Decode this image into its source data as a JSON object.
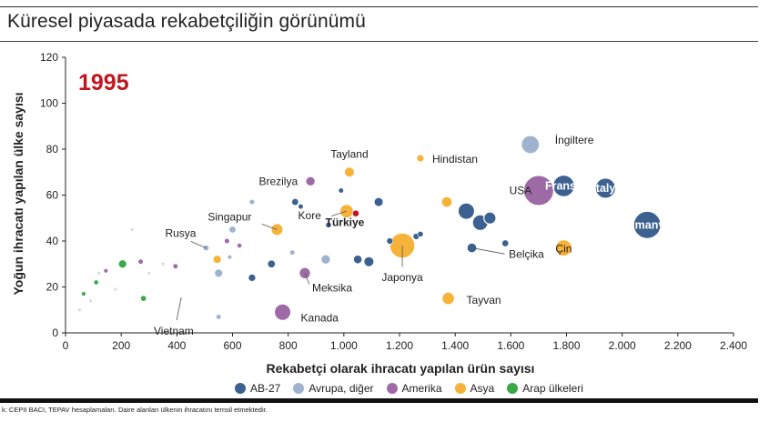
{
  "title": "Küresel piyasada rekabetçiliğin görünümü",
  "source": "k: CEPII BACI, TEPAV hesaplamaları. Daire alanları ülkenin ihracatını temsil etmektedir.",
  "colors": {
    "AB-27": "#3c6190",
    "Avrupa, diğer": "#9fb3cf",
    "Amerika": "#9e6aa6",
    "Asya": "#f7b339",
    "Arap ülkeleri": "#3aa845",
    "highlight": "#c0161f",
    "small": "#cfcfd6"
  },
  "chart_data": {
    "type": "scatter",
    "year_label": "1995",
    "xlabel": "Rekabetçi olarak ihracatı yapılan ürün sayısı",
    "ylabel": "Yoğun ihracatı yapılan ülke sayısı",
    "xlim": [
      0,
      2400
    ],
    "ylim": [
      0,
      120
    ],
    "xticks": [
      0,
      200,
      400,
      600,
      800,
      1000,
      1200,
      1400,
      1600,
      1800,
      2000,
      2200,
      2400
    ],
    "xtick_labels": [
      "0",
      "200",
      "400",
      "600",
      "800",
      "1.000",
      "1.200",
      "1.400",
      "1.600",
      "1.800",
      "2.000",
      "2.200",
      "2.400"
    ],
    "yticks": [
      0,
      20,
      40,
      60,
      80,
      100,
      120
    ],
    "grid": false,
    "legend_position": "bottom",
    "legend": [
      "AB-27",
      "Avrupa, diğer",
      "Amerika",
      "Asya",
      "Arap ülkeleri"
    ],
    "points": [
      {
        "x": 2090,
        "y": 47,
        "size": 13,
        "group": "AB-27",
        "label": "Almanya"
      },
      {
        "x": 1790,
        "y": 64,
        "size": 8,
        "group": "AB-27",
        "label": "Fransa"
      },
      {
        "x": 1940,
        "y": 63,
        "size": 7,
        "group": "AB-27",
        "label": "İtalya"
      },
      {
        "x": 1700,
        "y": 62,
        "size": 16,
        "group": "Amerika",
        "label": "USA"
      },
      {
        "x": 1670,
        "y": 82,
        "size": 5.5,
        "group": "Avrupa, diğer",
        "label": "İngiltere"
      },
      {
        "x": 1790,
        "y": 37,
        "size": 4.5,
        "group": "Asya",
        "label": "Çin"
      },
      {
        "x": 1440,
        "y": 53,
        "size": 4.5,
        "group": "AB-27",
        "label": ""
      },
      {
        "x": 1490,
        "y": 48,
        "size": 4,
        "group": "AB-27",
        "label": ""
      },
      {
        "x": 1525,
        "y": 50,
        "size": 2.3,
        "group": "AB-27",
        "label": ""
      },
      {
        "x": 1460,
        "y": 37,
        "size": 1.3,
        "group": "AB-27",
        "label": "Belçika"
      },
      {
        "x": 1210,
        "y": 38,
        "size": 11,
        "group": "Asya",
        "label": "Japonya"
      },
      {
        "x": 1375,
        "y": 15,
        "size": 2.5,
        "group": "Asya",
        "label": "Tayvan"
      },
      {
        "x": 1370,
        "y": 57,
        "size": 1.6,
        "group": "Asya",
        "label": ""
      },
      {
        "x": 1275,
        "y": 76,
        "size": 0.7,
        "group": "Asya",
        "label": "Hindistan"
      },
      {
        "x": 1020,
        "y": 70,
        "size": 1.4,
        "group": "Asya",
        "label": "Tayland"
      },
      {
        "x": 1010,
        "y": 53,
        "size": 3,
        "group": "Asya",
        "label": "Kore"
      },
      {
        "x": 1043,
        "y": 52,
        "size": 0.55,
        "group": "Türkiye",
        "label": "Türkiye"
      },
      {
        "x": 760,
        "y": 45,
        "size": 2.3,
        "group": "Asya",
        "label": "Singapur"
      },
      {
        "x": 545,
        "y": 32,
        "size": 0.9,
        "group": "Asya",
        "label": ""
      },
      {
        "x": 880,
        "y": 66,
        "size": 1.2,
        "group": "Amerika",
        "label": "Brezilya"
      },
      {
        "x": 780,
        "y": 9,
        "size": 4.5,
        "group": "Amerika",
        "label": "Kanada"
      },
      {
        "x": 860,
        "y": 26,
        "size": 1.8,
        "group": "Amerika",
        "label": "Meksika"
      },
      {
        "x": 935,
        "y": 32,
        "size": 1.2,
        "group": "Avrupa, diğer",
        "label": ""
      },
      {
        "x": 1125,
        "y": 57,
        "size": 1.1,
        "group": "AB-27",
        "label": ""
      },
      {
        "x": 1090,
        "y": 31,
        "size": 1.4,
        "group": "AB-27",
        "label": ""
      },
      {
        "x": 1050,
        "y": 32,
        "size": 1,
        "group": "AB-27",
        "label": ""
      },
      {
        "x": 1165,
        "y": 40,
        "size": 0.5,
        "group": "AB-27",
        "label": ""
      },
      {
        "x": 1260,
        "y": 42,
        "size": 0.5,
        "group": "AB-27",
        "label": ""
      },
      {
        "x": 1275,
        "y": 43,
        "size": 0.4,
        "group": "AB-27",
        "label": ""
      },
      {
        "x": 1580,
        "y": 39,
        "size": 0.6,
        "group": "AB-27",
        "label": ""
      },
      {
        "x": 825,
        "y": 57,
        "size": 0.6,
        "group": "AB-27",
        "label": ""
      },
      {
        "x": 845,
        "y": 55,
        "size": 0.3,
        "group": "AB-27",
        "label": ""
      },
      {
        "x": 990,
        "y": 62,
        "size": 0.3,
        "group": "AB-27",
        "label": ""
      },
      {
        "x": 740,
        "y": 30,
        "size": 0.8,
        "group": "AB-27",
        "label": ""
      },
      {
        "x": 670,
        "y": 24,
        "size": 0.7,
        "group": "AB-27",
        "label": ""
      },
      {
        "x": 945,
        "y": 47,
        "size": 0.4,
        "group": "AB-27",
        "label": ""
      },
      {
        "x": 550,
        "y": 26,
        "size": 0.9,
        "group": "Avrupa, diğer",
        "label": ""
      },
      {
        "x": 600,
        "y": 45,
        "size": 0.6,
        "group": "Avrupa, diğer",
        "label": ""
      },
      {
        "x": 670,
        "y": 57,
        "size": 0.3,
        "group": "Avrupa, diğer",
        "label": ""
      },
      {
        "x": 815,
        "y": 35,
        "size": 0.3,
        "group": "Avrupa, diğer",
        "label": ""
      },
      {
        "x": 550,
        "y": 7,
        "size": 0.3,
        "group": "Avrupa, diğer",
        "label": ""
      },
      {
        "x": 590,
        "y": 33,
        "size": 0.2,
        "group": "Avrupa, diğer",
        "label": ""
      },
      {
        "x": 505,
        "y": 37,
        "size": 0.4,
        "group": "Avrupa, diğer",
        "label": "Rusya"
      },
      {
        "x": 580,
        "y": 40,
        "size": 0.3,
        "group": "Amerika",
        "label": ""
      },
      {
        "x": 625,
        "y": 38,
        "size": 0.25,
        "group": "Amerika",
        "label": ""
      },
      {
        "x": 395,
        "y": 29,
        "size": 0.3,
        "group": "Amerika",
        "label": ""
      },
      {
        "x": 270,
        "y": 31,
        "size": 0.3,
        "group": "Amerika",
        "label": ""
      },
      {
        "x": 145,
        "y": 27,
        "size": 0.2,
        "group": "Amerika",
        "label": ""
      },
      {
        "x": 205,
        "y": 30,
        "size": 0.9,
        "group": "Arap ülkeleri",
        "label": ""
      },
      {
        "x": 280,
        "y": 15,
        "size": 0.4,
        "group": "Arap ülkeleri",
        "label": ""
      },
      {
        "x": 110,
        "y": 22,
        "size": 0.25,
        "group": "Arap ülkeleri",
        "label": ""
      },
      {
        "x": 65,
        "y": 17,
        "size": 0.2,
        "group": "Arap ülkeleri",
        "label": ""
      },
      {
        "x": 415,
        "y": 15,
        "size": 0.1,
        "group": "small",
        "label": "Vietnam"
      },
      {
        "x": 300,
        "y": 26,
        "size": 0.1,
        "group": "small",
        "label": ""
      },
      {
        "x": 240,
        "y": 45,
        "size": 0.1,
        "group": "small",
        "label": ""
      },
      {
        "x": 350,
        "y": 30,
        "size": 0.1,
        "group": "small",
        "label": ""
      },
      {
        "x": 180,
        "y": 19,
        "size": 0.1,
        "group": "small",
        "label": ""
      },
      {
        "x": 120,
        "y": 26,
        "size": 0.1,
        "group": "small",
        "label": ""
      },
      {
        "x": 90,
        "y": 14,
        "size": 0.1,
        "group": "small",
        "label": ""
      },
      {
        "x": 50,
        "y": 10,
        "size": 0.1,
        "group": "small",
        "label": ""
      }
    ]
  },
  "legend": {
    "items": [
      {
        "label": "AB-27",
        "key": "AB-27"
      },
      {
        "label": "Avrupa, diğer",
        "key": "Avrupa, diğer"
      },
      {
        "label": "Amerika",
        "key": "Amerika"
      },
      {
        "label": "Asya",
        "key": "Asya"
      },
      {
        "label": "Arap ülkeleri",
        "key": "Arap ülkeleri"
      }
    ]
  }
}
